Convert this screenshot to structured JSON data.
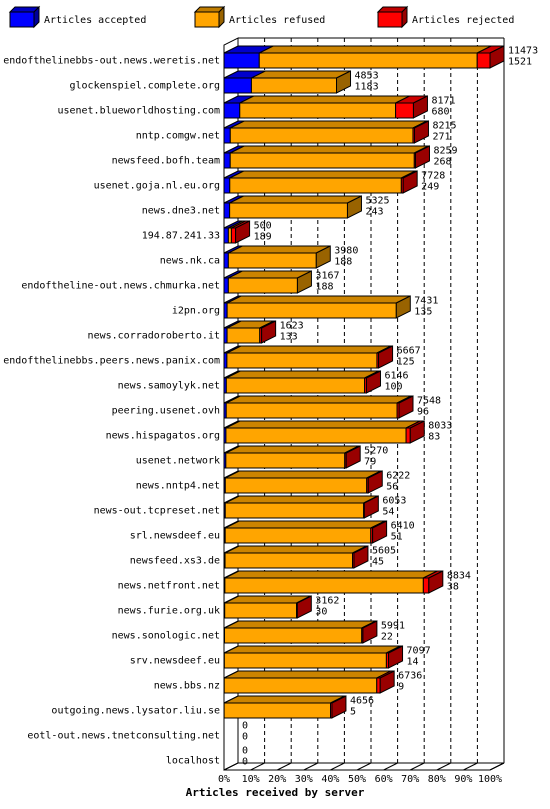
{
  "chart_data": {
    "type": "bar",
    "orientation": "horizontal",
    "stacked": true,
    "xlabel": "Articles received by server",
    "ticks": [
      "0%",
      "10%",
      "20%",
      "30%",
      "40%",
      "50%",
      "60%",
      "70%",
      "80%",
      "90%",
      "100%"
    ],
    "legend": [
      {
        "name": "Articles accepted",
        "color": "#0000ff"
      },
      {
        "name": "Articles refused",
        "color": "#ffa500"
      },
      {
        "name": "Articles rejected",
        "color": "#ff0000"
      }
    ],
    "legend_position": "top",
    "grid": true,
    "categories": [
      "endofthelinebbs-out.news.weretis.net",
      "glockenspiel.complete.org",
      "usenet.blueworldhosting.com",
      "nntp.comgw.net",
      "newsfeed.bofh.team",
      "usenet.goja.nl.eu.org",
      "news.dne3.net",
      "194.87.241.33",
      "news.nk.ca",
      "endoftheline-out.news.chmurka.net",
      "i2pn.org",
      "news.corradoroberto.it",
      "endofthelinebbs.peers.news.panix.com",
      "news.samoylyk.net",
      "peering.usenet.ovh",
      "news.hispagatos.org",
      "usenet.network",
      "news.nntp4.net",
      "news-out.tcpreset.net",
      "srl.newsdeef.eu",
      "newsfeed.xs3.de",
      "news.netfront.net",
      "news.furie.org.uk",
      "news.sonologic.net",
      "srv.newsdeef.eu",
      "news.bbs.nz",
      "outgoing.news.lysator.liu.se",
      "eotl-out.news.tnetconsulting.net",
      "localhost"
    ],
    "totals": [
      11473,
      4853,
      8171,
      8215,
      8259,
      7728,
      5325,
      500,
      3980,
      3167,
      7431,
      1623,
      6667,
      6146,
      7548,
      8033,
      5270,
      6222,
      6053,
      6410,
      5605,
      8834,
      3162,
      5991,
      7097,
      6736,
      4656,
      0,
      0
    ],
    "accepted_labels": [
      1521,
      1183,
      680,
      271,
      268,
      249,
      243,
      189,
      188,
      188,
      135,
      133,
      125,
      100,
      96,
      83,
      79,
      56,
      54,
      51,
      45,
      38,
      30,
      22,
      14,
      9,
      5,
      0,
      0
    ],
    "series": [
      {
        "name": "Articles accepted",
        "values": [
          1521,
          1183,
          680,
          271,
          268,
          249,
          243,
          189,
          188,
          188,
          135,
          133,
          125,
          100,
          96,
          83,
          79,
          56,
          54,
          51,
          45,
          38,
          30,
          22,
          14,
          9,
          5,
          0,
          0
        ]
      },
      {
        "name": "Articles refused",
        "values": [
          9400,
          3670,
          6721,
          7880,
          7940,
          7400,
          5082,
          131,
          3792,
          2979,
          7296,
          1410,
          6472,
          5966,
          7371,
          7770,
          5130,
          6100,
          5970,
          6280,
          5500,
          8560,
          3100,
          5920,
          6990,
          6580,
          4590,
          0,
          0
        ]
      },
      {
        "name": "Articles rejected",
        "values": [
          552,
          0,
          770,
          64,
          51,
          79,
          0,
          180,
          0,
          0,
          0,
          80,
          70,
          80,
          81,
          180,
          61,
          66,
          29,
          79,
          60,
          236,
          32,
          49,
          93,
          147,
          61,
          0,
          0
        ]
      }
    ],
    "xlim": [
      0,
      11473
    ]
  }
}
